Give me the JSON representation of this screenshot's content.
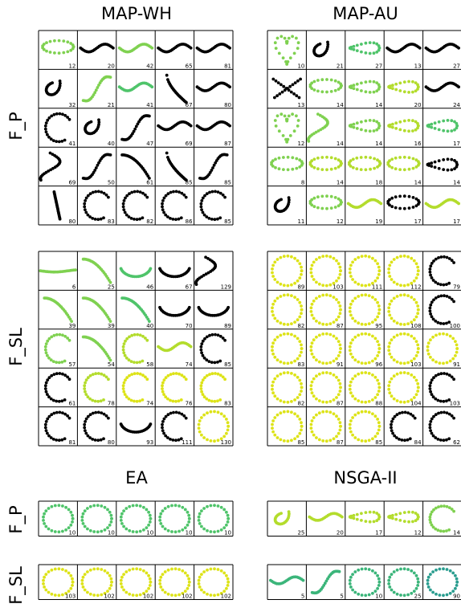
{
  "chart_data": {
    "type": "grid of curve-shape thumbnails",
    "column_titles": [
      "MAP-WH",
      "MAP-AU"
    ],
    "row_titles": [
      "F_P",
      "F_SL"
    ],
    "bottom_column_titles": [
      "EA",
      "NSGA-II"
    ],
    "bottom_row_titles": [
      "F_P",
      "F_SL"
    ],
    "colors": {
      "black": "#000000",
      "light_green": "#7fd150",
      "lime": "#b3dc2c",
      "yellow": "#dde318",
      "green": "#4fc46a",
      "teal": "#2a9d8f",
      "sea": "#3bb57a"
    },
    "panels": [
      {
        "name": "map-wh-f-p",
        "rows": 5,
        "cols": 5,
        "cells": [
          {
            "label": "12",
            "shape": "ellipse",
            "color": "light_green"
          },
          {
            "label": "20",
            "shape": "wave",
            "color": "black"
          },
          {
            "label": "42",
            "shape": "wave",
            "color": "light_green"
          },
          {
            "label": "65",
            "shape": "wave",
            "color": "black"
          },
          {
            "label": "81",
            "shape": "wave",
            "color": "black"
          },
          {
            "label": "32",
            "shape": "hook",
            "color": "black"
          },
          {
            "label": "21",
            "shape": "s-curve",
            "color": "light_green"
          },
          {
            "label": "41",
            "shape": "wave",
            "color": "green"
          },
          {
            "label": "67",
            "shape": "drop",
            "color": "black"
          },
          {
            "label": "80",
            "shape": "wave",
            "color": "black"
          },
          {
            "label": "41",
            "shape": "c-open",
            "color": "black"
          },
          {
            "label": "40",
            "shape": "hook",
            "color": "black"
          },
          {
            "label": "47",
            "shape": "s-curve",
            "color": "black"
          },
          {
            "label": "69",
            "shape": "wave",
            "color": "black"
          },
          {
            "label": "87",
            "shape": "wave",
            "color": "black"
          },
          {
            "label": "69",
            "shape": "dots",
            "color": "black"
          },
          {
            "label": "50",
            "shape": "s-curve",
            "color": "black"
          },
          {
            "label": "61",
            "shape": "arc-down",
            "color": "black"
          },
          {
            "label": "85",
            "shape": "drop",
            "color": "black"
          },
          {
            "label": "85",
            "shape": "s-curve",
            "color": "black"
          },
          {
            "label": "80",
            "shape": "line-diag",
            "color": "black"
          },
          {
            "label": "83",
            "shape": "c-open",
            "color": "black"
          },
          {
            "label": "82",
            "shape": "c-open",
            "color": "black"
          },
          {
            "label": "86",
            "shape": "c-open",
            "color": "black"
          },
          {
            "label": "85",
            "shape": "c-open",
            "color": "black"
          }
        ]
      },
      {
        "name": "map-au-f-p",
        "rows": 5,
        "cols": 5,
        "cells": [
          {
            "label": "10",
            "shape": "heart",
            "color": "light_green"
          },
          {
            "label": "21",
            "shape": "hook",
            "color": "black"
          },
          {
            "label": "27",
            "shape": "teardrop",
            "color": "green"
          },
          {
            "label": "13",
            "shape": "wave",
            "color": "black"
          },
          {
            "label": "27",
            "shape": "wave",
            "color": "black"
          },
          {
            "label": "13",
            "shape": "cross",
            "color": "black"
          },
          {
            "label": "14",
            "shape": "ellipse",
            "color": "light_green"
          },
          {
            "label": "14",
            "shape": "teardrop",
            "color": "light_green"
          },
          {
            "label": "20",
            "shape": "teardrop",
            "color": "lime"
          },
          {
            "label": "24",
            "shape": "wave",
            "color": "black"
          },
          {
            "label": "12",
            "shape": "heart",
            "color": "light_green"
          },
          {
            "label": "14",
            "shape": "dots",
            "color": "light_green"
          },
          {
            "label": "14",
            "shape": "teardrop",
            "color": "light_green"
          },
          {
            "label": "16",
            "shape": "teardrop",
            "color": "lime"
          },
          {
            "label": "17",
            "shape": "teardrop",
            "color": "green"
          },
          {
            "label": "8",
            "shape": "ellipse",
            "color": "light_green"
          },
          {
            "label": "14",
            "shape": "ellipse",
            "color": "lime"
          },
          {
            "label": "18",
            "shape": "ellipse",
            "color": "lime"
          },
          {
            "label": "14",
            "shape": "ellipse",
            "color": "lime"
          },
          {
            "label": "14",
            "shape": "teardrop",
            "color": "black"
          },
          {
            "label": "11",
            "shape": "hook",
            "color": "black"
          },
          {
            "label": "12",
            "shape": "ellipse",
            "color": "light_green"
          },
          {
            "label": "19",
            "shape": "wave",
            "color": "lime"
          },
          {
            "label": "17",
            "shape": "ellipse",
            "color": "black"
          },
          {
            "label": "17",
            "shape": "wave",
            "color": "lime"
          }
        ]
      },
      {
        "name": "map-wh-f-sl",
        "rows": 5,
        "cols": 5,
        "cells": [
          {
            "label": "6",
            "shape": "line-flat",
            "color": "light_green"
          },
          {
            "label": "25",
            "shape": "arc-down",
            "color": "light_green"
          },
          {
            "label": "46",
            "shape": "arc-up",
            "color": "green"
          },
          {
            "label": "67",
            "shape": "arc-up",
            "color": "black"
          },
          {
            "label": "129",
            "shape": "dots",
            "color": "black"
          },
          {
            "label": "39",
            "shape": "arc-down",
            "color": "light_green"
          },
          {
            "label": "39",
            "shape": "arc-down",
            "color": "light_green"
          },
          {
            "label": "40",
            "shape": "arc-down",
            "color": "green"
          },
          {
            "label": "70",
            "shape": "arc-up",
            "color": "black"
          },
          {
            "label": "89",
            "shape": "arc-up",
            "color": "black"
          },
          {
            "label": "57",
            "shape": "c-open",
            "color": "light_green"
          },
          {
            "label": "54",
            "shape": "arc-down",
            "color": "light_green"
          },
          {
            "label": "58",
            "shape": "c-open",
            "color": "lime"
          },
          {
            "label": "74",
            "shape": "wave",
            "color": "lime"
          },
          {
            "label": "85",
            "shape": "c-open",
            "color": "black"
          },
          {
            "label": "61",
            "shape": "c-open",
            "color": "black"
          },
          {
            "label": "78",
            "shape": "c-open",
            "color": "lime"
          },
          {
            "label": "74",
            "shape": "c-open",
            "color": "yellow"
          },
          {
            "label": "76",
            "shape": "c-open",
            "color": "yellow"
          },
          {
            "label": "83",
            "shape": "c-open",
            "color": "yellow"
          },
          {
            "label": "81",
            "shape": "c-open",
            "color": "black"
          },
          {
            "label": "80",
            "shape": "c-open",
            "color": "black"
          },
          {
            "label": "93",
            "shape": "arc-up",
            "color": "black"
          },
          {
            "label": "111",
            "shape": "c-open",
            "color": "black"
          },
          {
            "label": "130",
            "shape": "circle",
            "color": "yellow"
          }
        ]
      },
      {
        "name": "map-au-f-sl",
        "rows": 5,
        "cols": 5,
        "cells": [
          {
            "label": "89",
            "shape": "circle",
            "color": "yellow"
          },
          {
            "label": "103",
            "shape": "circle",
            "color": "yellow"
          },
          {
            "label": "111",
            "shape": "circle",
            "color": "yellow"
          },
          {
            "label": "112",
            "shape": "circle",
            "color": "yellow"
          },
          {
            "label": "79",
            "shape": "c-open",
            "color": "black"
          },
          {
            "label": "82",
            "shape": "circle",
            "color": "yellow"
          },
          {
            "label": "87",
            "shape": "circle",
            "color": "yellow"
          },
          {
            "label": "95",
            "shape": "circle",
            "color": "yellow"
          },
          {
            "label": "108",
            "shape": "circle",
            "color": "yellow"
          },
          {
            "label": "100",
            "shape": "c-open",
            "color": "black"
          },
          {
            "label": "83",
            "shape": "circle",
            "color": "yellow"
          },
          {
            "label": "91",
            "shape": "circle",
            "color": "yellow"
          },
          {
            "label": "96",
            "shape": "circle",
            "color": "yellow"
          },
          {
            "label": "103",
            "shape": "circle",
            "color": "yellow"
          },
          {
            "label": "91",
            "shape": "circle",
            "color": "yellow"
          },
          {
            "label": "82",
            "shape": "circle",
            "color": "yellow"
          },
          {
            "label": "87",
            "shape": "circle",
            "color": "yellow"
          },
          {
            "label": "88",
            "shape": "circle",
            "color": "yellow"
          },
          {
            "label": "104",
            "shape": "circle",
            "color": "yellow"
          },
          {
            "label": "103",
            "shape": "c-open",
            "color": "black"
          },
          {
            "label": "85",
            "shape": "circle",
            "color": "yellow"
          },
          {
            "label": "87",
            "shape": "circle",
            "color": "yellow"
          },
          {
            "label": "85",
            "shape": "circle",
            "color": "yellow"
          },
          {
            "label": "84",
            "shape": "c-open",
            "color": "black"
          },
          {
            "label": "62",
            "shape": "c-open",
            "color": "black"
          }
        ]
      },
      {
        "name": "ea-f-p",
        "rows": 1,
        "cols": 5,
        "cells": [
          {
            "label": "10",
            "shape": "circle",
            "color": "green"
          },
          {
            "label": "10",
            "shape": "circle",
            "color": "green"
          },
          {
            "label": "10",
            "shape": "circle",
            "color": "green"
          },
          {
            "label": "10",
            "shape": "circle",
            "color": "green"
          },
          {
            "label": "10",
            "shape": "circle",
            "color": "green"
          }
        ]
      },
      {
        "name": "nsga-f-p",
        "rows": 1,
        "cols": 5,
        "cells": [
          {
            "label": "25",
            "shape": "hook",
            "color": "lime"
          },
          {
            "label": "20",
            "shape": "wave",
            "color": "lime"
          },
          {
            "label": "17",
            "shape": "teardrop",
            "color": "lime"
          },
          {
            "label": "12",
            "shape": "teardrop",
            "color": "lime"
          },
          {
            "label": "14",
            "shape": "c-open",
            "color": "light_green"
          }
        ]
      },
      {
        "name": "ea-f-sl",
        "rows": 1,
        "cols": 5,
        "cells": [
          {
            "label": "103",
            "shape": "circle",
            "color": "yellow"
          },
          {
            "label": "102",
            "shape": "circle",
            "color": "yellow"
          },
          {
            "label": "102",
            "shape": "circle",
            "color": "yellow"
          },
          {
            "label": "102",
            "shape": "circle",
            "color": "yellow"
          },
          {
            "label": "102",
            "shape": "circle",
            "color": "yellow"
          }
        ]
      },
      {
        "name": "nsga-f-sl",
        "rows": 1,
        "cols": 5,
        "cells": [
          {
            "label": "5",
            "shape": "wave",
            "color": "sea"
          },
          {
            "label": "5",
            "shape": "s-curve",
            "color": "sea"
          },
          {
            "label": "10",
            "shape": "circle",
            "color": "sea"
          },
          {
            "label": "25",
            "shape": "circle",
            "color": "sea"
          },
          {
            "label": "90",
            "shape": "circle",
            "color": "teal"
          }
        ]
      }
    ]
  }
}
